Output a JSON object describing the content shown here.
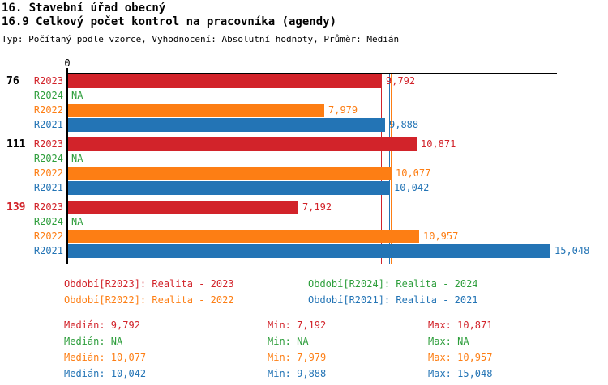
{
  "header": {
    "title_line1": "16. Stavební úřad obecný",
    "title_line2": "16.9 Celkový počet kontrol na pracovníka (agendy)",
    "subtitle": "Typ: Počítaný podle vzorce, Vyhodnocení: Absolutní hodnoty, Průměr: Medián"
  },
  "chart_data": {
    "type": "bar",
    "orientation": "horizontal",
    "origin_tick_label": "0",
    "series_order": [
      "R2023",
      "R2024",
      "R2022",
      "R2021"
    ],
    "series_colors": {
      "R2023": "#d2232a",
      "R2024": "#2e9e3c",
      "R2022": "#fd7e14",
      "R2021": "#2374b5"
    },
    "groups": [
      {
        "label": "76",
        "label_color": "#000000",
        "bars": [
          {
            "series": "R2023",
            "value": 9792,
            "label": "9,792"
          },
          {
            "series": "R2024",
            "value": null,
            "label": "NA"
          },
          {
            "series": "R2022",
            "value": 7979,
            "label": "7,979"
          },
          {
            "series": "R2021",
            "value": 9888,
            "label": "9,888"
          }
        ]
      },
      {
        "label": "111",
        "label_color": "#000000",
        "bars": [
          {
            "series": "R2023",
            "value": 10871,
            "label": "10,871"
          },
          {
            "series": "R2024",
            "value": null,
            "label": "NA"
          },
          {
            "series": "R2022",
            "value": 10077,
            "label": "10,077"
          },
          {
            "series": "R2021",
            "value": 10042,
            "label": "10,042"
          }
        ]
      },
      {
        "label": "139",
        "label_color": "#d2232a",
        "bars": [
          {
            "series": "R2023",
            "value": 7192,
            "label": "7,192"
          },
          {
            "series": "R2024",
            "value": null,
            "label": "NA"
          },
          {
            "series": "R2022",
            "value": 10957,
            "label": "10,957"
          },
          {
            "series": "R2021",
            "value": 15048,
            "label": "15,048"
          }
        ]
      }
    ],
    "reference_lines": [
      {
        "series": "R2021",
        "value": 10042
      },
      {
        "series": "R2022",
        "value": 10077
      },
      {
        "series": "R2023",
        "value": 9792
      }
    ]
  },
  "legend": {
    "items": [
      {
        "series": "R2023",
        "label": "Období[R2023]: Realita - 2023",
        "column": 1,
        "row": 1
      },
      {
        "series": "R2022",
        "label": "Období[R2022]: Realita - 2022",
        "column": 1,
        "row": 2
      },
      {
        "series": "R2024",
        "label": "Období[R2024]: Realita - 2024",
        "column": 2,
        "row": 1
      },
      {
        "series": "R2021",
        "label": "Období[R2021]: Realita - 2021",
        "column": 2,
        "row": 2
      }
    ]
  },
  "stats": {
    "rows": [
      {
        "series": "R2023",
        "median": "Medián: 9,792",
        "min": "Min: 7,192",
        "max": "Max: 10,871"
      },
      {
        "series": "R2024",
        "median": "Medián: NA",
        "min": "Min: NA",
        "max": "Max: NA"
      },
      {
        "series": "R2022",
        "median": "Medián: 10,077",
        "min": "Min: 7,979",
        "max": "Max: 10,957"
      },
      {
        "series": "R2021",
        "median": "Medián: 10,042",
        "min": "Min: 9,888",
        "max": "Max: 15,048"
      }
    ]
  }
}
